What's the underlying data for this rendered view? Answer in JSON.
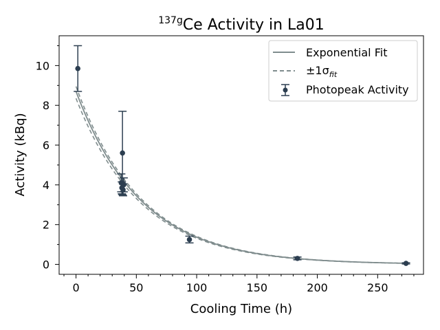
{
  "chart_data": {
    "type": "scatter",
    "title_sup": "137g",
    "title_main": "Ce Activity in La01",
    "xlabel": "Cooling Time (h)",
    "ylabel": "Activity (kBq)",
    "xlim": [
      -14,
      288
    ],
    "ylim": [
      -0.5,
      11.5
    ],
    "x_ticks": [
      0,
      50,
      100,
      150,
      200,
      250
    ],
    "y_ticks": [
      0,
      2,
      4,
      6,
      8,
      10
    ],
    "grid": false,
    "legend_position": "top-right",
    "legend": {
      "fit": "Exponential Fit",
      "band_prefix": "±1σ",
      "band_sub": "fit",
      "points": "Photopeak Activity"
    },
    "fit": {
      "A0": 8.7,
      "half_life_h": 37.5,
      "band_A0_low": 8.35,
      "band_A0_high": 8.95
    },
    "points": [
      {
        "x": 1.5,
        "y": 9.85,
        "err": 1.15
      },
      {
        "x": 37.5,
        "y": 4.1,
        "err": 0.45
      },
      {
        "x": 38.0,
        "y": 3.85,
        "err": 0.3
      },
      {
        "x": 38.5,
        "y": 5.6,
        "err": 2.1
      },
      {
        "x": 39.0,
        "y": 3.75,
        "err": 0.3
      },
      {
        "x": 39.5,
        "y": 4.0,
        "err": 0.35
      },
      {
        "x": 94.0,
        "y": 1.25,
        "err": 0.17
      },
      {
        "x": 183.5,
        "y": 0.3,
        "err": 0.07
      },
      {
        "x": 273.5,
        "y": 0.05,
        "err": 0.03
      }
    ],
    "colors": {
      "fit": "#7f8c8d",
      "points": "#2c3e50"
    }
  }
}
